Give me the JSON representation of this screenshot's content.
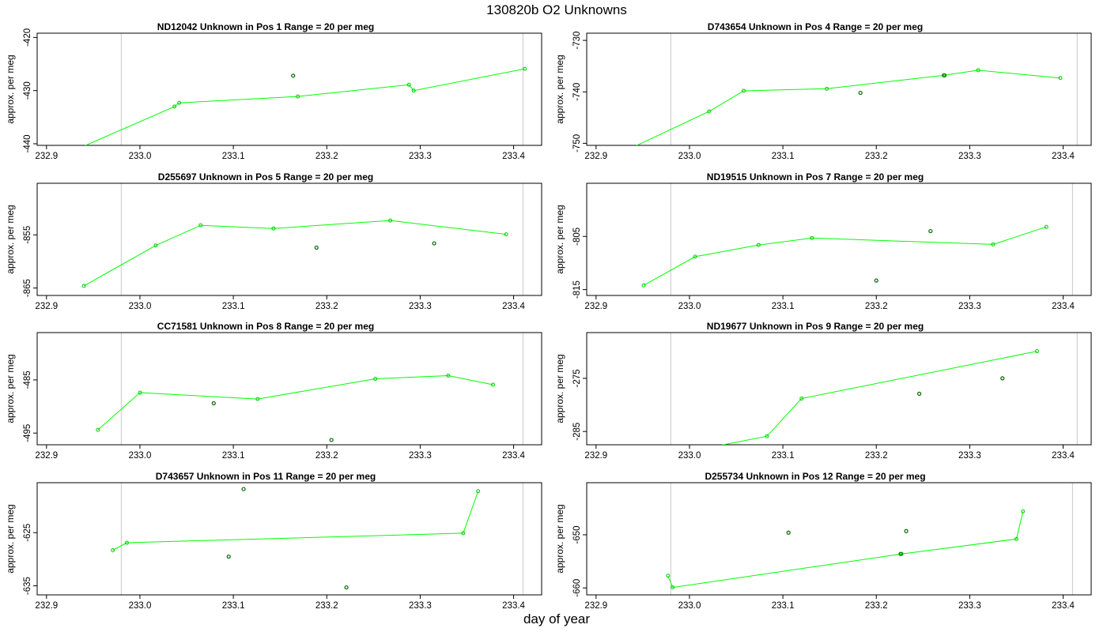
{
  "title": "130820b  O2 Unknowns",
  "xlabel": "day of year",
  "colors": {
    "line": "#00ff00",
    "marker": "#00cc00",
    "open_point": "#006600",
    "vline": "#c8c8c8",
    "frame": "#000000"
  },
  "chart_data": [
    {
      "type": "line",
      "title": "ND12042    Unknown in Pos 1          Range = 20 per meg",
      "ylabel": "approx. per meg",
      "xlim": [
        232.89,
        233.43
      ],
      "ylim": [
        -440.3,
        -419.2
      ],
      "xticks": [
        232.9,
        233.0,
        233.1,
        233.2,
        233.3,
        233.4
      ],
      "xtick_labels": [
        "232.9",
        "233.0",
        "233.1",
        "233.2",
        "233.3",
        "233.4"
      ],
      "yticks": [
        -440,
        -430,
        -420
      ],
      "ytick_labels": [
        "-440",
        "-430",
        "-420"
      ],
      "vlines": [
        232.98,
        233.41
      ],
      "series": [
        {
          "x": [
            232.925,
            233.037,
            233.042,
            233.169,
            233.288,
            233.293,
            233.412
          ],
          "y": [
            -441.6,
            -433.0,
            -432.3,
            -431.1,
            -428.9,
            -430.0,
            -425.9
          ]
        }
      ],
      "points": [
        {
          "x": 233.164,
          "y": -427.2
        }
      ]
    },
    {
      "type": "line",
      "title": "D743654    Unknown in Pos 4          Range = 20 per meg",
      "ylabel": "approx. per meg",
      "xlim": [
        232.89,
        233.43
      ],
      "ylim": [
        -750.4,
        -728.6
      ],
      "xticks": [
        232.9,
        233.0,
        233.1,
        233.2,
        233.3,
        233.4
      ],
      "xtick_labels": [
        "232.9",
        "233.0",
        "233.1",
        "233.2",
        "233.3",
        "233.4"
      ],
      "yticks": [
        -750,
        -740,
        -730
      ],
      "ytick_labels": [
        "-750",
        "-740",
        "-730"
      ],
      "vlines": [
        232.98,
        233.415
      ],
      "series": [
        {
          "x": [
            232.925,
            233.021,
            233.058,
            233.147,
            233.272,
            233.309,
            233.397
          ],
          "y": [
            -752.0,
            -743.8,
            -739.8,
            -739.4,
            -736.8,
            -735.8,
            -737.3
          ]
        }
      ],
      "points": [
        {
          "x": 233.183,
          "y": -740.2
        },
        {
          "x": 233.273,
          "y": -736.8
        }
      ]
    },
    {
      "type": "line",
      "title": "D255697    Unknown in Pos 5          Range = 20 per meg",
      "ylabel": "approx. per meg",
      "xlim": [
        232.89,
        233.43
      ],
      "ylim": [
        -866.4,
        -845.3
      ],
      "xticks": [
        232.9,
        233.0,
        233.1,
        233.2,
        233.3,
        233.4
      ],
      "xtick_labels": [
        "232.9",
        "233.0",
        "233.1",
        "233.2",
        "233.3",
        "233.4"
      ],
      "yticks": [
        -865,
        -855
      ],
      "ytick_labels": [
        "-865",
        "-855"
      ],
      "vlines": [
        232.98,
        233.41
      ],
      "series": [
        {
          "x": [
            232.94,
            233.017,
            233.065,
            233.143,
            233.268,
            233.392
          ],
          "y": [
            -864.6,
            -857.0,
            -853.2,
            -853.8,
            -852.3,
            -854.9
          ]
        }
      ],
      "points": [
        {
          "x": 233.189,
          "y": -857.4
        },
        {
          "x": 233.315,
          "y": -856.6
        }
      ]
    },
    {
      "type": "line",
      "title": "ND19515    Unknown in Pos 7          Range = 20 per meg",
      "ylabel": "approx. per meg",
      "xlim": [
        232.89,
        233.43
      ],
      "ylim": [
        -816.1,
        -795.0
      ],
      "xticks": [
        232.9,
        233.0,
        233.1,
        233.2,
        233.3,
        233.4
      ],
      "xtick_labels": [
        "232.9",
        "233.0",
        "233.1",
        "233.2",
        "233.3",
        "233.4"
      ],
      "yticks": [
        -815,
        -805
      ],
      "ytick_labels": [
        "-815",
        "-805"
      ],
      "vlines": [
        232.98,
        233.41
      ],
      "series": [
        {
          "x": [
            232.951,
            233.006,
            233.074,
            233.131,
            233.325,
            233.382
          ],
          "y": [
            -814.2,
            -808.8,
            -806.6,
            -805.3,
            -806.5,
            -803.2
          ]
        }
      ],
      "points": [
        {
          "x": 233.258,
          "y": -804.0
        },
        {
          "x": 233.2,
          "y": -813.3
        }
      ]
    },
    {
      "type": "line",
      "title": "CC71581    Unknown in Pos 8          Range = 20 per meg",
      "ylabel": "approx. per meg",
      "xlim": [
        232.89,
        233.43
      ],
      "ylim": [
        -497.2,
        -476.1
      ],
      "xticks": [
        232.9,
        233.0,
        233.1,
        233.2,
        233.3,
        233.4
      ],
      "xtick_labels": [
        "232.9",
        "233.0",
        "233.1",
        "233.2",
        "233.3",
        "233.4"
      ],
      "yticks": [
        -495,
        -485
      ],
      "ytick_labels": [
        "-495",
        "-485"
      ],
      "vlines": [
        232.98,
        233.41
      ],
      "series": [
        {
          "x": [
            232.955,
            233.0,
            233.126,
            233.252,
            233.33,
            233.378
          ],
          "y": [
            -494.4,
            -487.4,
            -488.6,
            -484.8,
            -484.2,
            -485.9
          ]
        }
      ],
      "points": [
        {
          "x": 233.079,
          "y": -489.4
        },
        {
          "x": 233.205,
          "y": -496.3
        }
      ]
    },
    {
      "type": "line",
      "title": "ND19677    Unknown in Pos 9          Range = 20 per meg",
      "ylabel": "approx. per meg",
      "xlim": [
        232.89,
        233.43
      ],
      "ylim": [
        -287.5,
        -266.4
      ],
      "xticks": [
        232.9,
        233.0,
        233.1,
        233.2,
        233.3,
        233.4
      ],
      "xtick_labels": [
        "232.9",
        "233.0",
        "233.1",
        "233.2",
        "233.3",
        "233.4"
      ],
      "yticks": [
        -285,
        -275
      ],
      "ytick_labels": [
        "-285",
        "-275"
      ],
      "vlines": [
        232.98,
        233.415
      ],
      "series": [
        {
          "x": [
            232.975,
            233.083,
            233.12,
            233.372
          ],
          "y": [
            -289.6,
            -285.9,
            -278.8,
            -269.9
          ]
        }
      ],
      "points": [
        {
          "x": 233.246,
          "y": -277.9
        },
        {
          "x": 233.335,
          "y": -275.0
        }
      ]
    },
    {
      "type": "line",
      "title": "D743657    Unknown in Pos 11          Range = 20 per meg",
      "ylabel": "approx. per meg",
      "xlim": [
        232.89,
        233.43
      ],
      "ylim": [
        -636.7,
        -615.6
      ],
      "xticks": [
        232.9,
        233.0,
        233.1,
        233.2,
        233.3,
        233.4
      ],
      "xtick_labels": [
        "232.9",
        "233.0",
        "233.1",
        "233.2",
        "233.3",
        "233.4"
      ],
      "yticks": [
        -635,
        -625
      ],
      "ytick_labels": [
        "-635",
        "-625"
      ],
      "vlines": [
        232.98,
        233.41
      ],
      "series": [
        {
          "x": [
            232.971,
            232.986,
            233.346,
            233.362
          ],
          "y": [
            -628.3,
            -626.9,
            -625.1,
            -617.2
          ]
        }
      ],
      "points": [
        {
          "x": 233.111,
          "y": -616.8
        },
        {
          "x": 233.095,
          "y": -629.5
        },
        {
          "x": 233.221,
          "y": -635.3
        }
      ]
    },
    {
      "type": "line",
      "title": "D255734    Unknown in Pos 12          Range = 20 per meg",
      "ylabel": "approx. per meg",
      "xlim": [
        232.89,
        233.43
      ],
      "ylim": [
        -661.3,
        -640.2
      ],
      "xticks": [
        232.9,
        233.0,
        233.1,
        233.2,
        233.3,
        233.4
      ],
      "xtick_labels": [
        "232.9",
        "233.0",
        "233.1",
        "233.2",
        "233.3",
        "233.4"
      ],
      "yticks": [
        -660,
        -650
      ],
      "ytick_labels": [
        "-660",
        "-650"
      ],
      "vlines": [
        232.98,
        233.41
      ],
      "series": [
        {
          "x": [
            232.977,
            232.982,
            233.227,
            233.35,
            233.357
          ],
          "y": [
            -657.7,
            -659.9,
            -653.6,
            -650.8,
            -645.6
          ]
        }
      ],
      "points": [
        {
          "x": 233.106,
          "y": -649.6
        },
        {
          "x": 233.232,
          "y": -649.3
        },
        {
          "x": 233.226,
          "y": -653.6
        }
      ]
    }
  ]
}
